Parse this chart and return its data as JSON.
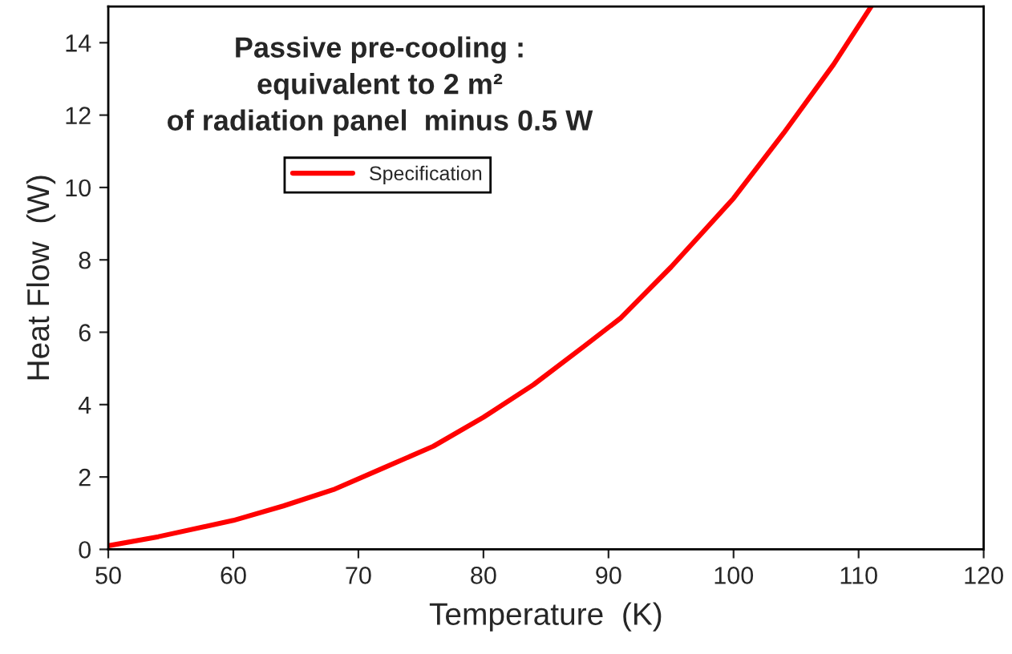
{
  "chart_data": {
    "type": "line",
    "title": "Passive pre-cooling :\nequivalent to 2 m²\nof radiation panel  minus 0.5 W",
    "xlabel": "Temperature  (K)",
    "ylabel": "Heat Flow  (W)",
    "x": [
      50,
      54,
      60,
      64,
      68,
      72,
      76,
      80,
      84,
      88,
      91,
      95,
      100,
      104,
      108,
      111
    ],
    "series": [
      {
        "name": "Specification",
        "color": "#ff0000",
        "values": [
          0.1,
          0.35,
          0.8,
          1.2,
          1.65,
          2.25,
          2.85,
          3.65,
          4.55,
          5.6,
          6.4,
          7.8,
          9.7,
          11.5,
          13.4,
          15
        ]
      }
    ],
    "xlim": [
      50,
      120
    ],
    "xticks": [
      50,
      60,
      70,
      80,
      90,
      100,
      110,
      120
    ],
    "ylim": [
      0,
      15
    ],
    "yticks": [
      0,
      2,
      4,
      6,
      8,
      10,
      12,
      14
    ],
    "grid": false,
    "legend": "top left",
    "marker": "none",
    "line_style": "solid"
  }
}
